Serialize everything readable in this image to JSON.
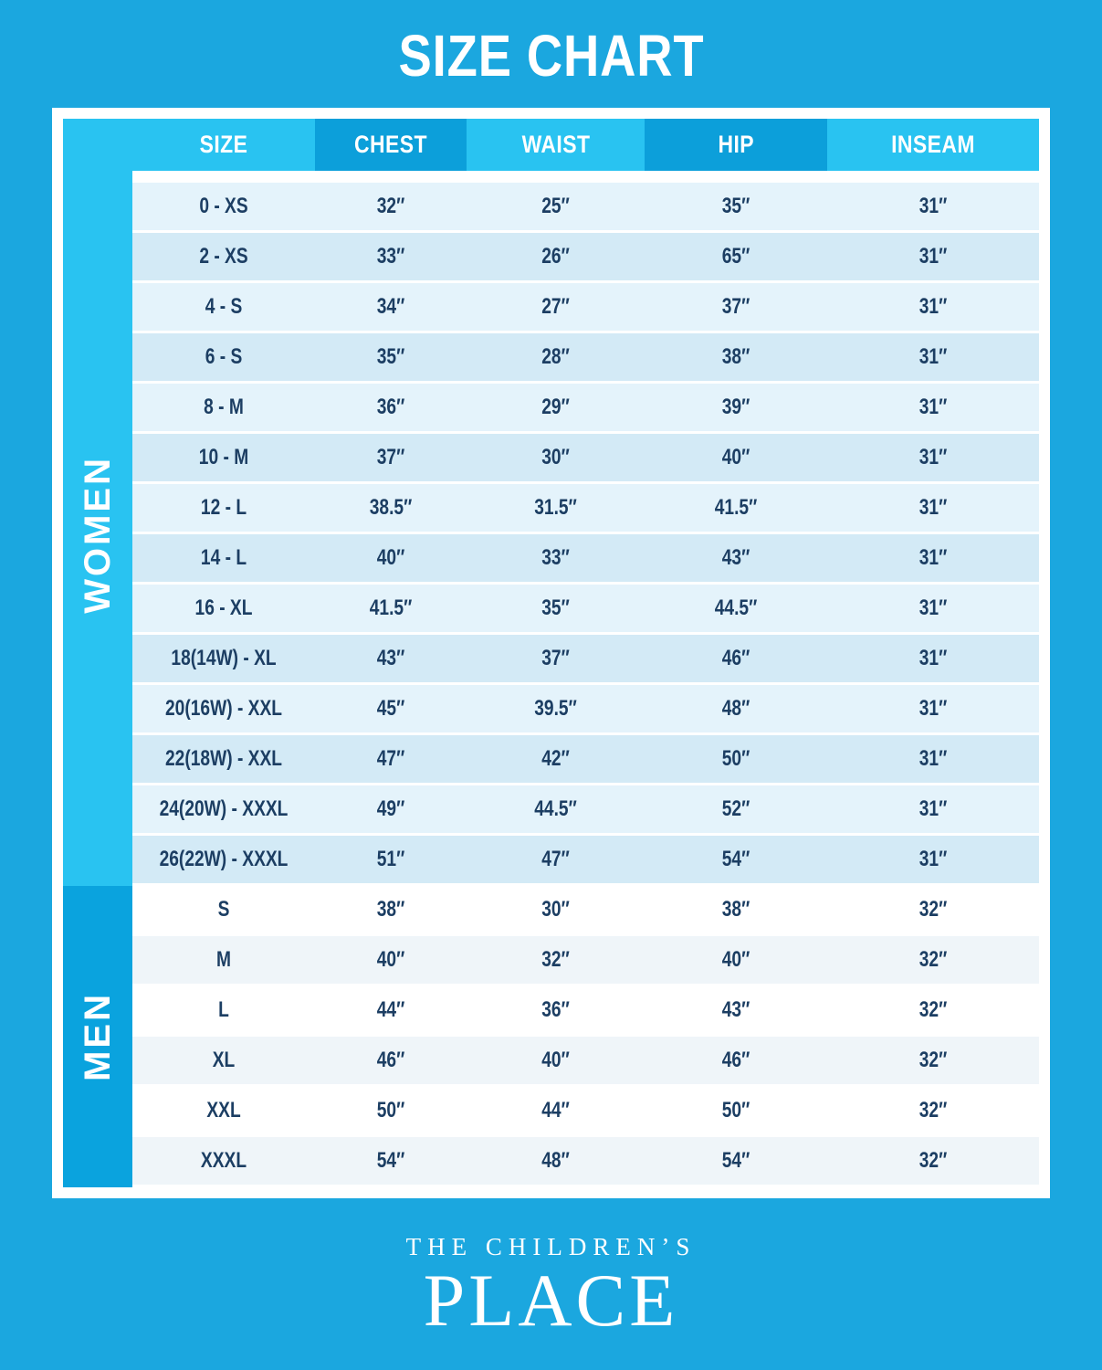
{
  "title": "SIZE CHART",
  "chart_data": {
    "type": "table",
    "title": "SIZE CHART",
    "headers": [
      "SIZE",
      "CHEST",
      "WAIST",
      "HIP",
      "INSEAM"
    ],
    "sections": [
      {
        "label": "WOMEN",
        "rows": [
          [
            "0 - XS",
            "32″",
            "25″",
            "35″",
            "31″"
          ],
          [
            "2 - XS",
            "33″",
            "26″",
            "65″",
            "31″"
          ],
          [
            "4 - S",
            "34″",
            "27″",
            "37″",
            "31″"
          ],
          [
            "6 - S",
            "35″",
            "28″",
            "38″",
            "31″"
          ],
          [
            "8 - M",
            "36″",
            "29″",
            "39″",
            "31″"
          ],
          [
            "10 - M",
            "37″",
            "30″",
            "40″",
            "31″"
          ],
          [
            "12 - L",
            "38.5″",
            "31.5″",
            "41.5″",
            "31″"
          ],
          [
            "14 - L",
            "40″",
            "33″",
            "43″",
            "31″"
          ],
          [
            "16 - XL",
            "41.5″",
            "35″",
            "44.5″",
            "31″"
          ],
          [
            "18(14W) - XL",
            "43″",
            "37″",
            "46″",
            "31″"
          ],
          [
            "20(16W) - XXL",
            "45″",
            "39.5″",
            "48″",
            "31″"
          ],
          [
            "22(18W) - XXL",
            "47″",
            "42″",
            "50″",
            "31″"
          ],
          [
            "24(20W) - XXXL",
            "49″",
            "44.5″",
            "52″",
            "31″"
          ],
          [
            "26(22W) - XXXL",
            "51″",
            "47″",
            "54″",
            "31″"
          ]
        ]
      },
      {
        "label": "MEN",
        "rows": [
          [
            "S",
            "38″",
            "30″",
            "38″",
            "32″"
          ],
          [
            "M",
            "40″",
            "32″",
            "40″",
            "32″"
          ],
          [
            "L",
            "44″",
            "36″",
            "43″",
            "32″"
          ],
          [
            "XL",
            "46″",
            "40″",
            "46″",
            "32″"
          ],
          [
            "XXL",
            "50″",
            "44″",
            "50″",
            "32″"
          ],
          [
            "XXXL",
            "54″",
            "48″",
            "54″",
            "32″"
          ]
        ]
      }
    ]
  },
  "footer": {
    "brand_top": "THE CHILDREN’S",
    "brand_bottom": "PLACE"
  },
  "colors": {
    "background": "#1BA7DF",
    "frame": "#FFFFFF",
    "header_light": "#29C3F1",
    "header_dark": "#0C9FDA",
    "women_sidebar": "#29C3F1",
    "men_sidebar": "#0AA3DE",
    "women_row_light": "#E4F3FB",
    "women_row_dark": "#D3EAF6",
    "men_row_light": "#FFFFFF",
    "men_row_dark": "#EFF5F9",
    "cell_text": "#1C3E63"
  }
}
